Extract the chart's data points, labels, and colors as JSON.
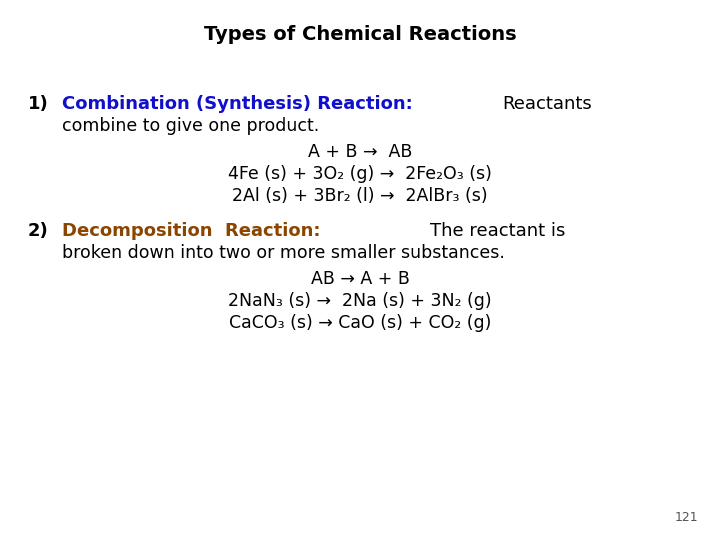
{
  "title": "Types of Chemical Reactions",
  "title_fontsize": 14,
  "title_fontweight": "bold",
  "title_color": "#000000",
  "background_color": "#ffffff",
  "page_number": "121",
  "section1_heading": "Combination (Synthesis) Reaction:",
  "section1_heading_color": "#1010CC",
  "section1_body_color": "#000000",
  "section2_heading": "Decomposition  Reaction:",
  "section2_heading_color": "#8B4500",
  "section2_body_color": "#000000",
  "section1_eq1": "A + B →  AB",
  "section1_eq2": "4Fe (s) + 3O₂ (g) →  2Fe₂O₃ (s)",
  "section1_eq3": "2Al (s) + 3Br₂ (l) →  2AlBr₃ (s)",
  "section2_eq1": "AB → A + B",
  "section2_eq2": "2NaN₃ (s) →  2Na (s) + 3N₂ (g)",
  "section2_eq3": "CaCO₃ (s) → CaO (s) + CO₂ (g)",
  "body_fontsize": 12.5,
  "heading_fontsize": 13,
  "eq_fontsize": 12.5
}
